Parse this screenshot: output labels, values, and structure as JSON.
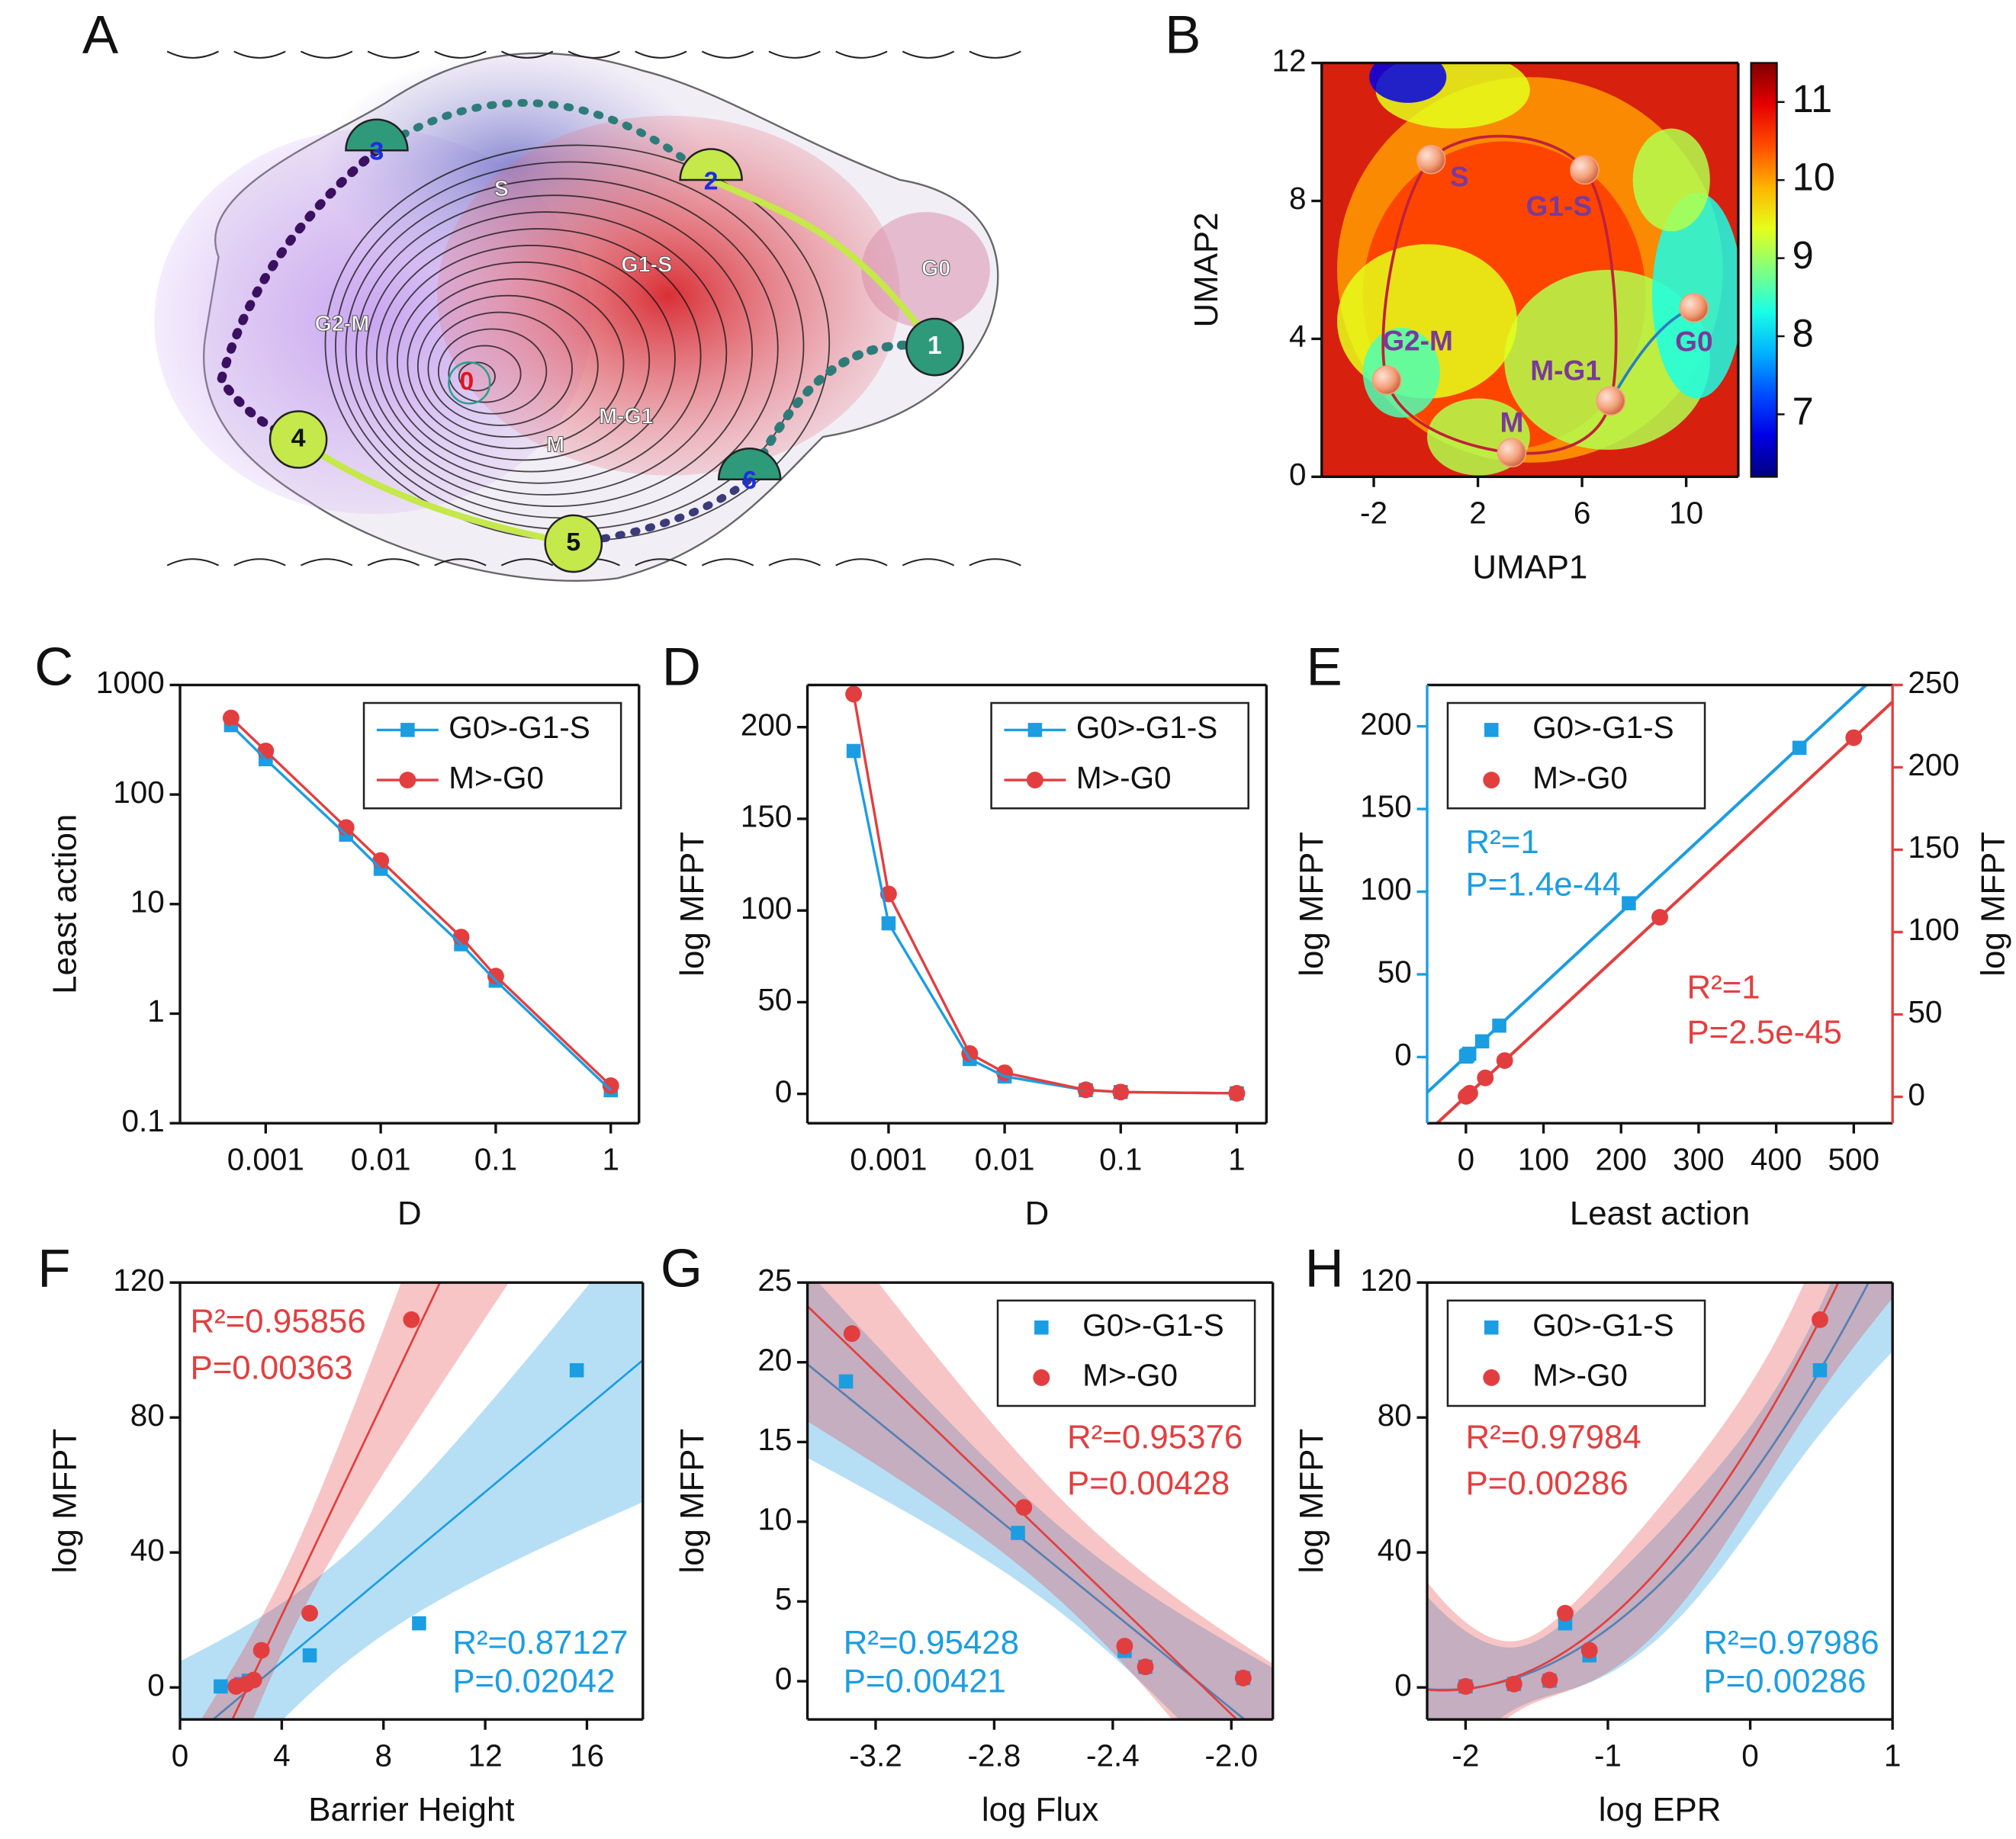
{
  "chart_data": [
    {
      "type": "landscape",
      "label": "A",
      "nodes": [
        "0",
        "1",
        "2",
        "3",
        "4",
        "5",
        "6"
      ],
      "regions": [
        "S",
        "G1-S",
        "G0",
        "G2-M",
        "M-G1",
        "M"
      ]
    },
    {
      "type": "scatter",
      "label": "B",
      "xlabel": "UMAP1",
      "ylabel": "UMAP2",
      "xlim": [
        -4,
        12
      ],
      "ylim": [
        0,
        12
      ],
      "xticks": [
        -2,
        2,
        6,
        10
      ],
      "yticks": [
        0,
        4,
        8,
        12
      ],
      "zlim": [
        6.2,
        11.5
      ],
      "zticks": [
        7,
        8,
        9,
        10,
        11
      ],
      "colormap": "jet",
      "labels": [
        "S",
        "G1-S",
        "G0",
        "M-G1",
        "M",
        "G2-M"
      ],
      "x": [
        0.2,
        6.1,
        10.3,
        7.1,
        3.3,
        -1.5
      ],
      "values": [
        9.2,
        8.9,
        4.9,
        2.2,
        0.7,
        2.8
      ],
      "color": "#f4a07a"
    },
    {
      "type": "line",
      "label": "C",
      "xlabel": "D",
      "ylabel": "Least action",
      "xlog": true,
      "ylog": true,
      "xlim": [
        0.00018,
        1.76
      ],
      "ylim": [
        0.1,
        1000
      ],
      "xticks": [
        0.001,
        0.01,
        0.1,
        1
      ],
      "yticks": [
        0.1,
        1,
        10,
        100,
        1000
      ],
      "x": [
        0.0005,
        0.001,
        0.005,
        0.01,
        0.05,
        0.1,
        1
      ],
      "legend": "upper right",
      "series": [
        {
          "name": "G0>-G1-S",
          "color": "#1b9de2",
          "marker": "square",
          "values": [
            430,
            210,
            43,
            21,
            4.3,
            2.0,
            0.2
          ]
        },
        {
          "name": "M>-G0",
          "color": "#e33e3f",
          "marker": "circle",
          "values": [
            500,
            250,
            50,
            25,
            5,
            2.2,
            0.22
          ]
        }
      ]
    },
    {
      "type": "line",
      "label": "D",
      "xlabel": "D",
      "ylabel": "log MFPT",
      "xlog": true,
      "xlim": [
        0.0002,
        1.8
      ],
      "ylim": [
        -16,
        223
      ],
      "xticks": [
        0.001,
        0.01,
        0.1,
        1
      ],
      "yticks": [
        0,
        50,
        100,
        150,
        200
      ],
      "x": [
        0.0005,
        0.001,
        0.005,
        0.01,
        0.05,
        0.1,
        1
      ],
      "legend": "upper right",
      "series": [
        {
          "name": "G0>-G1-S",
          "color": "#1b9de2",
          "marker": "square",
          "values": [
            187,
            93,
            19,
            9.5,
            2,
            1,
            0.3
          ]
        },
        {
          "name": "M>-G0",
          "color": "#e33e3f",
          "marker": "circle",
          "values": [
            218,
            109,
            22,
            11.5,
            2.2,
            1,
            0.3
          ]
        }
      ]
    },
    {
      "type": "scatter",
      "label": "E",
      "xlabel": "Least action",
      "ylabel": "log MFPT",
      "y2label": "log MFPT",
      "xlim": [
        -50,
        550
      ],
      "ylim": [
        -40,
        225
      ],
      "y2lim": [
        -16,
        250
      ],
      "xticks": [
        0,
        100,
        200,
        300,
        400,
        500
      ],
      "yticks": [
        0,
        50,
        100,
        150,
        200
      ],
      "y2ticks": [
        0,
        50,
        100,
        150,
        200,
        250
      ],
      "legend": "upper left",
      "fit": "linear",
      "series": [
        {
          "name": "G0>-G1-S",
          "color": "#1b9de2",
          "marker": "square",
          "x": [
            0.2,
            2,
            4.3,
            21,
            43,
            210,
            430
          ],
          "values": [
            0.3,
            1,
            2,
            9.5,
            19,
            93,
            187
          ]
        },
        {
          "name": "M>-G0",
          "color": "#e33e3f",
          "marker": "circle",
          "axis": "y2",
          "x": [
            0.22,
            2.2,
            5,
            25,
            50,
            250,
            500
          ],
          "values": [
            0.3,
            1,
            2.2,
            11.5,
            22,
            109,
            218
          ]
        }
      ],
      "annotations": [
        {
          "text": "R²=1",
          "color": "#1b9de2"
        },
        {
          "text": "P=1.4e-44",
          "color": "#1b9de2"
        },
        {
          "text": "R²=1",
          "color": "#e33e3f"
        },
        {
          "text": "P=2.5e-45",
          "color": "#e33e3f"
        }
      ]
    },
    {
      "type": "scatter",
      "label": "F",
      "xlabel": "Barrier Height",
      "ylabel": "log MFPT",
      "xlim": [
        0,
        18.2
      ],
      "ylim": [
        -9.5,
        120
      ],
      "xticks": [
        0,
        4,
        8,
        12,
        16
      ],
      "yticks": [
        0,
        40,
        80,
        120
      ],
      "fit": "linear",
      "band": true,
      "series": [
        {
          "name": "G0>-G1-S",
          "color": "#1b9de2",
          "marker": "square",
          "x": [
            1.6,
            2.4,
            2.7,
            5.1,
            9.4,
            15.6
          ],
          "values": [
            0.3,
            1,
            2,
            9.5,
            19,
            94
          ]
        },
        {
          "name": "M>-G0",
          "color": "#e33e3f",
          "marker": "circle",
          "x": [
            2.2,
            2.6,
            2.9,
            3.2,
            5.1,
            9.1
          ],
          "values": [
            0.3,
            1,
            2.2,
            11,
            22,
            109
          ]
        }
      ],
      "annotations": [
        {
          "text": "R²=0.95856",
          "color": "#e33e3f"
        },
        {
          "text": "P=0.00363",
          "color": "#e33e3f"
        },
        {
          "text": "R²=0.87127",
          "color": "#1b9de2"
        },
        {
          "text": "P=0.02042",
          "color": "#1b9de2"
        }
      ]
    },
    {
      "type": "scatter",
      "label": "G",
      "xlabel": "log Flux",
      "ylabel": "log MFPT",
      "xlim": [
        -3.43,
        -1.86
      ],
      "ylim": [
        -2.4,
        25
      ],
      "xticks": [
        -3.2,
        -2.8,
        -2.4,
        {
          "value": -2,
          "label": "-2.0"
        }
      ],
      "yticks": [
        0,
        5,
        10,
        15,
        20,
        25
      ],
      "legend": "upper right",
      "fit": "linear",
      "band": true,
      "series": [
        {
          "name": "G0>-G1-S",
          "color": "#1b9de2",
          "marker": "square",
          "x": [
            -3.3,
            -2.72,
            -2.36,
            -2.29,
            -1.96
          ],
          "values": [
            18.8,
            9.3,
            1.9,
            0.9,
            0.2
          ]
        },
        {
          "name": "M>-G0",
          "color": "#e33e3f",
          "marker": "circle",
          "x": [
            -3.28,
            -2.7,
            -2.36,
            -2.29,
            -1.96
          ],
          "values": [
            21.8,
            10.9,
            2.2,
            0.9,
            0.2
          ]
        }
      ],
      "annotations": [
        {
          "text": "R²=0.95376",
          "color": "#e33e3f"
        },
        {
          "text": "P=0.00428",
          "color": "#e33e3f"
        },
        {
          "text": "R²=0.95428",
          "color": "#1b9de2"
        },
        {
          "text": "P=0.00421",
          "color": "#1b9de2"
        }
      ]
    },
    {
      "type": "scatter",
      "label": "H",
      "xlabel": "log EPR",
      "ylabel": "log MFPT",
      "xlim": [
        -2.27,
        1
      ],
      "ylim": [
        -9.5,
        120
      ],
      "xticks": [
        -2,
        -1,
        0,
        1
      ],
      "yticks": [
        0,
        40,
        80,
        120
      ],
      "legend": "upper left",
      "fit": "quadratic",
      "band": true,
      "series": [
        {
          "name": "G0>-G1-S",
          "color": "#1b9de2",
          "marker": "square",
          "x": [
            -2,
            -1.66,
            -1.41,
            -1.3,
            -1.13,
            0.49
          ],
          "values": [
            0.3,
            1,
            2,
            19,
            9.5,
            94
          ]
        },
        {
          "name": "M>-G0",
          "color": "#e33e3f",
          "marker": "circle",
          "x": [
            -2,
            -1.66,
            -1.41,
            -1.3,
            -1.13,
            0.49
          ],
          "values": [
            0.3,
            1,
            2.2,
            22,
            11,
            109
          ]
        }
      ],
      "annotations": [
        {
          "text": "R²=0.97984",
          "color": "#e33e3f"
        },
        {
          "text": "P=0.00286",
          "color": "#e33e3f"
        },
        {
          "text": "R²=0.97986",
          "color": "#1b9de2"
        },
        {
          "text": "P=0.00286",
          "color": "#1b9de2"
        }
      ]
    }
  ]
}
